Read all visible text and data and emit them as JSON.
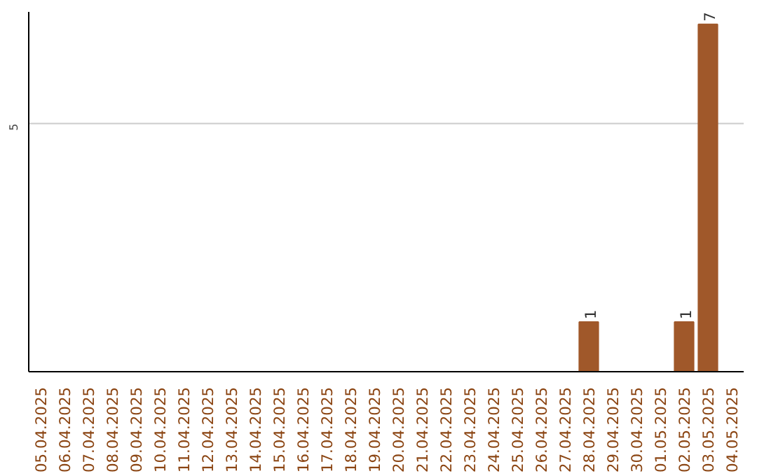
{
  "chart_data": {
    "type": "bar",
    "categories": [
      "05.04.2025",
      "06.04.2025",
      "07.04.2025",
      "08.04.2025",
      "09.04.2025",
      "10.04.2025",
      "11.04.2025",
      "12.04.2025",
      "13.04.2025",
      "14.04.2025",
      "15.04.2025",
      "16.04.2025",
      "17.04.2025",
      "18.04.2025",
      "19.04.2025",
      "20.04.2025",
      "21.04.2025",
      "22.04.2025",
      "23.04.2025",
      "24.04.2025",
      "25.04.2025",
      "26.04.2025",
      "27.04.2025",
      "28.04.2025",
      "29.04.2025",
      "30.04.2025",
      "01.05.2025",
      "02.05.2025",
      "03.05.2025",
      "04.05.2025"
    ],
    "values": [
      null,
      null,
      null,
      null,
      null,
      null,
      null,
      null,
      null,
      null,
      null,
      null,
      null,
      null,
      null,
      null,
      null,
      null,
      null,
      null,
      null,
      null,
      null,
      1,
      null,
      null,
      null,
      1,
      7,
      null
    ],
    "value_labels": [
      null,
      null,
      null,
      null,
      null,
      null,
      null,
      null,
      null,
      null,
      null,
      null,
      null,
      null,
      null,
      null,
      null,
      null,
      null,
      null,
      null,
      null,
      null,
      "1",
      null,
      null,
      null,
      "1",
      "7",
      null
    ],
    "color": "#a0582a",
    "ylim": [
      0,
      7.25
    ],
    "ref_lines": [
      {
        "axis": "y",
        "value": 5,
        "label": "5",
        "color": "#cccccc"
      }
    ]
  }
}
